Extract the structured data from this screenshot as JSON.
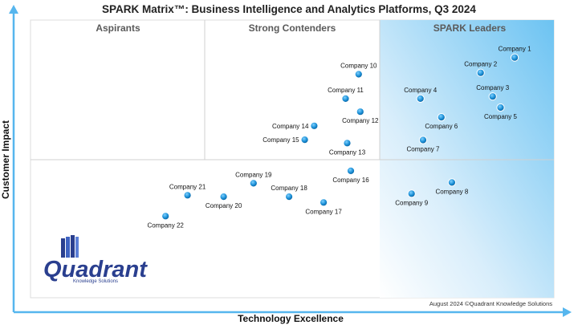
{
  "chart_data": {
    "type": "scatter",
    "title": "SPARK Matrix™: Business Intelligence and Analytics Platforms, Q3 2024",
    "xlabel": "Technology Excellence",
    "ylabel": "Customer Impact",
    "quadrants": [
      "Aspirants",
      "Strong Contenders",
      "SPARK Leaders"
    ],
    "xlim": [
      0,
      100
    ],
    "ylim": [
      0,
      100
    ],
    "dividers": {
      "x": [
        33.3,
        66.7
      ],
      "y": 50
    },
    "grid": false,
    "points": [
      {
        "label": "Company 1",
        "x": 92.5,
        "y": 86.5,
        "label_pos": "above"
      },
      {
        "label": "Company 2",
        "x": 86.0,
        "y": 81.0,
        "label_pos": "above"
      },
      {
        "label": "Company 3",
        "x": 88.3,
        "y": 72.5,
        "label_pos": "above"
      },
      {
        "label": "Company 4",
        "x": 74.5,
        "y": 71.7,
        "label_pos": "above"
      },
      {
        "label": "Company 5",
        "x": 89.8,
        "y": 68.5,
        "label_pos": "below"
      },
      {
        "label": "Company 6",
        "x": 78.5,
        "y": 65.0,
        "label_pos": "below"
      },
      {
        "label": "Company 7",
        "x": 75.0,
        "y": 56.8,
        "label_pos": "below"
      },
      {
        "label": "Company 8",
        "x": 80.5,
        "y": 41.5,
        "label_pos": "below"
      },
      {
        "label": "Company 9",
        "x": 72.8,
        "y": 37.5,
        "label_pos": "below"
      },
      {
        "label": "Company 10",
        "x": 62.7,
        "y": 80.5,
        "label_pos": "above"
      },
      {
        "label": "Company 11",
        "x": 60.2,
        "y": 71.7,
        "label_pos": "above"
      },
      {
        "label": "Company 12",
        "x": 63.0,
        "y": 67.0,
        "label_pos": "below"
      },
      {
        "label": "Company 13",
        "x": 60.5,
        "y": 55.7,
        "label_pos": "below"
      },
      {
        "label": "Company 14",
        "x": 54.2,
        "y": 61.9,
        "label_pos": "left"
      },
      {
        "label": "Company 15",
        "x": 52.4,
        "y": 56.9,
        "label_pos": "left"
      },
      {
        "label": "Company 16",
        "x": 61.2,
        "y": 45.7,
        "label_pos": "below"
      },
      {
        "label": "Company 17",
        "x": 56.0,
        "y": 34.3,
        "label_pos": "below"
      },
      {
        "label": "Company 18",
        "x": 49.4,
        "y": 36.4,
        "label_pos": "above"
      },
      {
        "label": "Company 19",
        "x": 42.6,
        "y": 41.2,
        "label_pos": "above"
      },
      {
        "label": "Company 20",
        "x": 36.9,
        "y": 36.4,
        "label_pos": "below"
      },
      {
        "label": "Company 21",
        "x": 30.0,
        "y": 36.9,
        "label_pos": "above"
      },
      {
        "label": "Company 22",
        "x": 25.8,
        "y": 29.4,
        "label_pos": "below"
      }
    ],
    "footer": "August 2024 ©Quadrant Knowledge Solutions",
    "logo": {
      "word": "Quadrant",
      "subtitle": "Knowledge Solutions"
    },
    "colors": {
      "point": "#1a8fd6",
      "leader_fill_start": "#e8f4fd",
      "leader_fill_end": "#6cc3f2",
      "axis": "#56b6ee",
      "divider": "#c8c8c8"
    }
  }
}
